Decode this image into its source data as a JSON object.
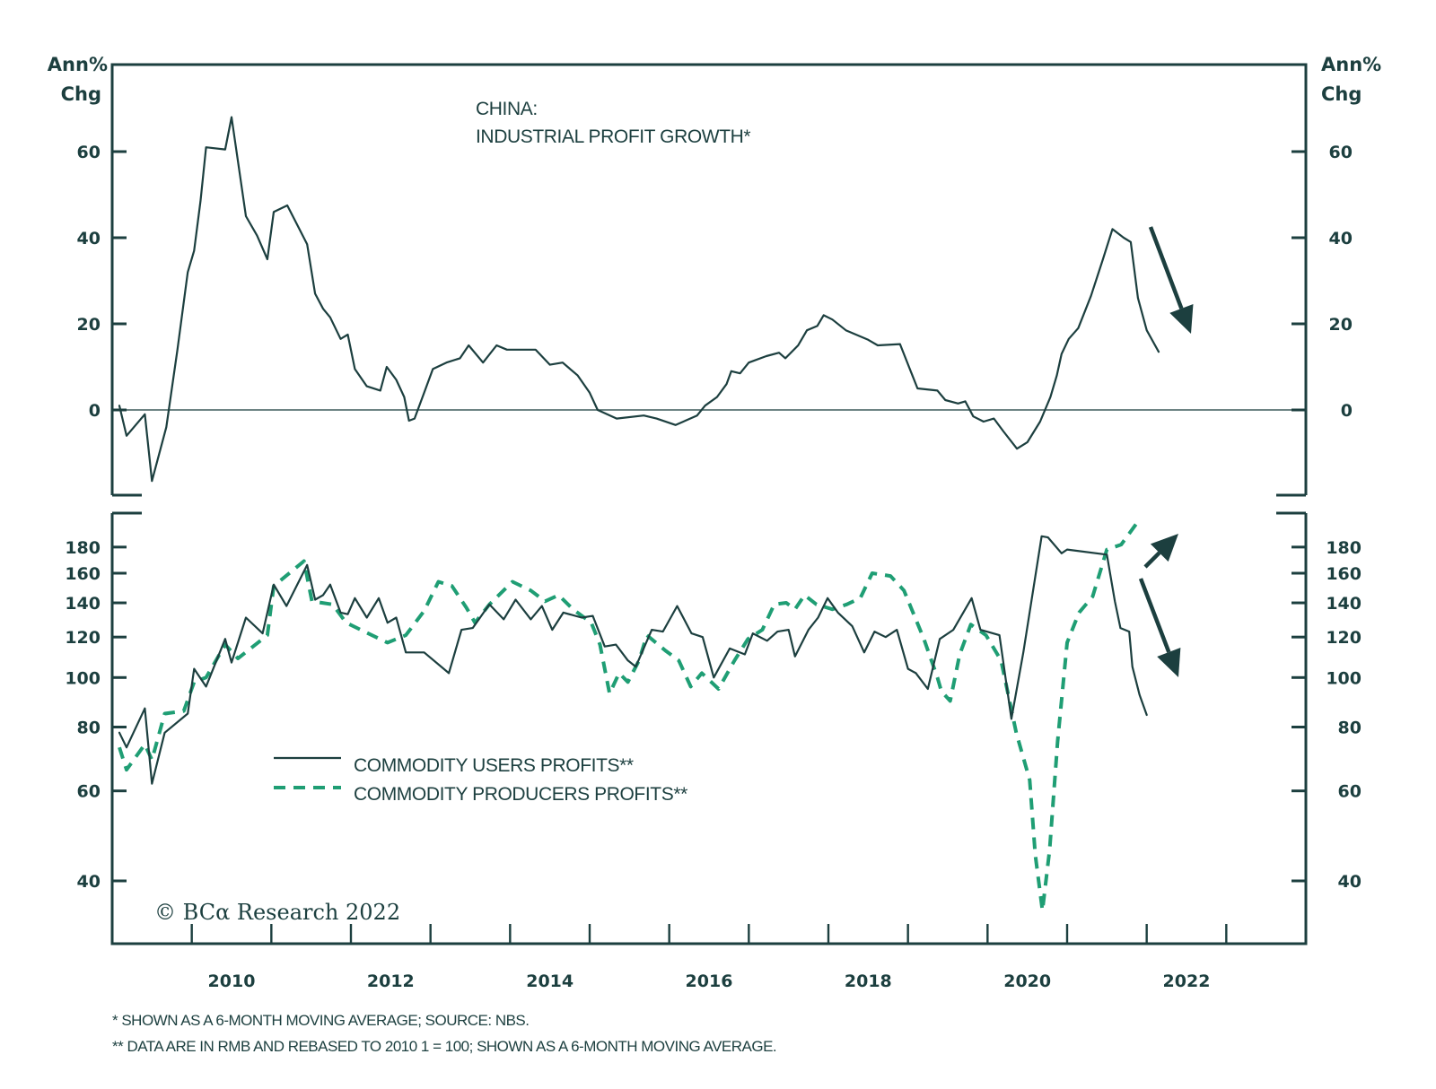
{
  "chart_data": [
    {
      "type": "line",
      "panel": "top",
      "title": "CHINA:",
      "subtitle": "INDUSTRIAL PROFIT GROWTH*",
      "ylabel_left": [
        "Ann%",
        "Chg"
      ],
      "ylabel_right": [
        "Ann%",
        "Chg"
      ],
      "ylim": [
        -19,
        80
      ],
      "yticks": [
        0,
        20,
        40,
        60
      ],
      "zero_line": true,
      "annotation": "down-arrow",
      "series": [
        {
          "name": "Industrial Profit Growth",
          "style": "solid",
          "color": "#1c3f3f",
          "x": [
            2009.09,
            2009.18,
            2009.41,
            2009.5,
            2009.68,
            2009.82,
            2009.95,
            2010.03,
            2010.11,
            2010.18,
            2010.42,
            2010.5,
            2010.68,
            2010.82,
            2010.95,
            2011.03,
            2011.2,
            2011.45,
            2011.55,
            2011.65,
            2011.74,
            2011.87,
            2011.96,
            2012.05,
            2012.2,
            2012.37,
            2012.45,
            2012.57,
            2012.67,
            2012.73,
            2012.8,
            2012.92,
            2013.03,
            2013.2,
            2013.37,
            2013.48,
            2013.66,
            2013.83,
            2013.96,
            2014.32,
            2014.5,
            2014.66,
            2014.85,
            2015.0,
            2015.1,
            2015.34,
            2015.68,
            2015.84,
            2016.08,
            2016.35,
            2016.45,
            2016.6,
            2016.72,
            2016.78,
            2016.89,
            2017.0,
            2017.22,
            2017.38,
            2017.46,
            2017.62,
            2017.73,
            2017.86,
            2017.94,
            2018.05,
            2018.22,
            2018.5,
            2018.62,
            2018.9,
            2019.12,
            2019.37,
            2019.47,
            2019.63,
            2019.72,
            2019.82,
            2019.95,
            2020.08,
            2020.2,
            2020.37,
            2020.5,
            2020.66,
            2020.79,
            2020.87,
            2020.93,
            2021.02,
            2021.14,
            2021.3,
            2021.45,
            2021.57,
            2021.71,
            2021.8,
            2021.89,
            2022.0,
            2022.15
          ],
          "values": [
            1,
            -6,
            -1,
            -16.5,
            -4,
            14,
            32,
            37,
            48.5,
            61,
            60.5,
            68,
            45,
            40.5,
            35,
            46,
            47.5,
            38.5,
            27,
            23.5,
            21.5,
            16.5,
            17.5,
            9.5,
            5.5,
            4.5,
            10,
            7,
            3,
            -2.5,
            -2,
            4,
            9.5,
            11,
            12,
            15,
            11,
            15,
            14,
            14,
            10.5,
            11,
            8,
            4,
            0,
            -2,
            -1.3,
            -2,
            -3.5,
            -1.3,
            1,
            3,
            6,
            9,
            8.5,
            11,
            12.5,
            13.3,
            12,
            15,
            18.5,
            19.5,
            22,
            21,
            18.5,
            16.3,
            15,
            15.3,
            5,
            4.5,
            2.3,
            1.5,
            2,
            -1.5,
            -2.7,
            -2,
            -5,
            -9,
            -7.5,
            -2.7,
            3,
            8,
            13,
            16.5,
            19,
            26.5,
            35,
            42,
            40,
            39,
            26,
            18.5,
            13.5
          ]
        }
      ]
    },
    {
      "type": "line",
      "panel": "bottom",
      "yscale": "log",
      "ylim": [
        35,
        205
      ],
      "yticks": [
        40,
        60,
        80,
        100,
        120,
        140,
        160,
        180
      ],
      "annotation": [
        "up-arrow",
        "down-arrow"
      ],
      "legend_position": "center-left",
      "series": [
        {
          "name": "COMMODITY USERS PROFITS**",
          "style": "solid",
          "color": "#1c3f3f",
          "x": [
            2009.09,
            2009.18,
            2009.41,
            2009.5,
            2009.66,
            2009.95,
            2010.03,
            2010.18,
            2010.42,
            2010.5,
            2010.68,
            2010.89,
            2011.03,
            2011.19,
            2011.45,
            2011.55,
            2011.65,
            2011.74,
            2011.87,
            2011.96,
            2012.05,
            2012.2,
            2012.35,
            2012.46,
            2012.57,
            2012.69,
            2012.92,
            2013.23,
            2013.39,
            2013.53,
            2013.74,
            2013.92,
            2014.07,
            2014.26,
            2014.4,
            2014.53,
            2014.67,
            2014.9,
            2015.04,
            2015.19,
            2015.33,
            2015.48,
            2015.58,
            2015.78,
            2015.92,
            2016.1,
            2016.28,
            2016.42,
            2016.56,
            2016.76,
            2016.95,
            2017.05,
            2017.23,
            2017.36,
            2017.5,
            2017.58,
            2017.75,
            2017.87,
            2017.99,
            2018.12,
            2018.3,
            2018.45,
            2018.58,
            2018.72,
            2018.86,
            2019.0,
            2019.1,
            2019.25,
            2019.4,
            2019.57,
            2019.8,
            2019.91,
            2020.15,
            2020.3,
            2020.45,
            2020.68,
            2020.76,
            2020.93,
            2021.0,
            2021.5,
            2021.6,
            2021.67,
            2021.78,
            2021.82,
            2021.91,
            2022.0
          ],
          "values": [
            78,
            73,
            87,
            62,
            78,
            85,
            104,
            96,
            119,
            107,
            131,
            122,
            152,
            138,
            166,
            142,
            145,
            152,
            134,
            133,
            143,
            131,
            143,
            128,
            131,
            112,
            112,
            102,
            124,
            125,
            139,
            130,
            142,
            130,
            138,
            124,
            134,
            131,
            132,
            115,
            116,
            108,
            105,
            124,
            123,
            138,
            122,
            120,
            100,
            114,
            111,
            122,
            118,
            123,
            124,
            110,
            124,
            131,
            143,
            134,
            126,
            112,
            123,
            120,
            124,
            104,
            102,
            95,
            119,
            124,
            143,
            124,
            121,
            83,
            112,
            189,
            188,
            175,
            178,
            174,
            141,
            125,
            123,
            105,
            92.5,
            84.5
          ]
        },
        {
          "name": "COMMODITY PRODUCERS PROFITS**",
          "style": "dashed",
          "color": "#1f9e74",
          "x": [
            2009.09,
            2009.18,
            2009.41,
            2009.5,
            2009.66,
            2009.9,
            2010.03,
            2010.18,
            2010.42,
            2010.58,
            2010.95,
            2011.03,
            2011.41,
            2011.51,
            2011.77,
            2011.94,
            2012.17,
            2012.46,
            2012.69,
            2012.92,
            2013.1,
            2013.27,
            2013.45,
            2013.56,
            2013.74,
            2014.03,
            2014.26,
            2014.44,
            2014.61,
            2014.79,
            2015.02,
            2015.13,
            2015.25,
            2015.37,
            2015.48,
            2015.62,
            2015.72,
            2015.95,
            2016.12,
            2016.27,
            2016.41,
            2016.62,
            2016.82,
            2016.99,
            2017.17,
            2017.32,
            2017.47,
            2017.58,
            2017.7,
            2017.85,
            2018.05,
            2018.23,
            2018.4,
            2018.55,
            2018.78,
            2018.95,
            2019.2,
            2019.37,
            2019.42,
            2019.53,
            2019.65,
            2019.79,
            2019.98,
            2020.17,
            2020.36,
            2020.53,
            2020.6,
            2020.69,
            2020.78,
            2020.88,
            2021.0,
            2021.15,
            2021.32,
            2021.5,
            2021.68,
            2021.88
          ],
          "values": [
            73,
            66,
            74,
            69,
            85,
            86,
            98,
            100,
            116,
            109,
            121,
            151,
            169,
            141,
            139,
            128,
            123,
            117,
            121,
            135,
            154,
            151,
            137,
            128,
            139,
            154,
            148,
            141,
            145,
            136,
            128,
            116,
            93,
            102,
            98,
            108,
            121,
            113,
            108,
            96,
            102,
            95,
            108,
            119,
            124,
            139,
            140,
            136,
            145,
            139,
            136,
            139,
            143,
            160,
            158,
            148,
            119,
            100,
            94,
            90,
            111,
            127,
            121,
            108,
            78,
            63,
            45,
            35,
            46,
            75,
            117,
            134,
            144,
            178,
            182,
            201
          ]
        }
      ]
    },
    {
      "type": "x-axis",
      "xlim": [
        2009.0,
        2024.0
      ],
      "tick_labels": [
        "2010",
        "2012",
        "2014",
        "2016",
        "2018",
        "2020",
        "2022"
      ],
      "tick_label_years": [
        2010,
        2012,
        2014,
        2016,
        2018,
        2020,
        2022
      ]
    }
  ],
  "texts": {
    "top_title": "CHINA:",
    "top_subtitle": "INDUSTRIAL PROFIT GROWTH*",
    "y_unit_line1": "Ann%",
    "y_unit_line2": "Chg",
    "legend_users": "COMMODITY USERS PROFITS**",
    "legend_producers": "COMMODITY PRODUCERS PROFITS**",
    "copyright": "© BCα Research 2022",
    "footnote1": "*  SHOWN AS A 6-MONTH MOVING AVERAGE; SOURCE: NBS.",
    "footnote2": "** DATA ARE IN RMB AND REBASED TO 2010 1 = 100; SHOWN AS A 6-MONTH MOVING AVERAGE."
  },
  "colors": {
    "ink": "#1c3f3f",
    "producers_green": "#1f9e74",
    "background": "#ffffff"
  }
}
